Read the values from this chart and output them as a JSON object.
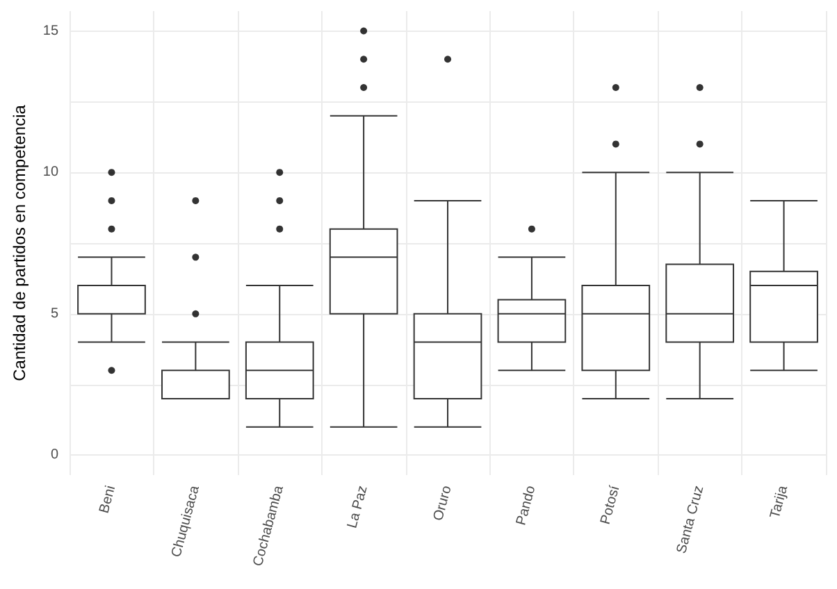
{
  "chart_data": {
    "type": "box",
    "ylabel": "Cantidad de partidos en competencia",
    "categories": [
      "Beni",
      "Chuquisaca",
      "Cochabamba",
      "La Paz",
      "Oruro",
      "Pando",
      "Potosí",
      "Santa Cruz",
      "Tarija"
    ],
    "color": "#333333",
    "boxes": [
      {
        "low": 4,
        "q1": 5,
        "median": 5,
        "q3": 6,
        "high": 7,
        "outliers": [
          3,
          8,
          9,
          10
        ]
      },
      {
        "low": 2,
        "q1": 2,
        "median": 3,
        "q3": 3,
        "high": 4,
        "outliers": [
          5,
          7,
          9
        ]
      },
      {
        "low": 1,
        "q1": 2,
        "median": 3,
        "q3": 4,
        "high": 6,
        "outliers": [
          8,
          9,
          10
        ]
      },
      {
        "low": 1,
        "q1": 5,
        "median": 7,
        "q3": 8,
        "high": 12,
        "outliers": [
          13,
          14,
          15
        ]
      },
      {
        "low": 1,
        "q1": 2,
        "median": 4,
        "q3": 5,
        "high": 9,
        "outliers": [
          14
        ]
      },
      {
        "low": 3,
        "q1": 4,
        "median": 5,
        "q3": 5.5,
        "high": 7,
        "outliers": [
          8
        ]
      },
      {
        "low": 2,
        "q1": 3,
        "median": 5,
        "q3": 6,
        "high": 10,
        "outliers": [
          11,
          13
        ]
      },
      {
        "low": 2,
        "q1": 4,
        "median": 5,
        "q3": 6.75,
        "high": 10,
        "outliers": [
          11,
          13
        ]
      },
      {
        "low": 3,
        "q1": 4,
        "median": 6,
        "q3": 6.5,
        "high": 9
      }
    ],
    "ylim": [
      -0.7,
      15.7
    ],
    "yticks": [
      0,
      {
        "value": 2.5,
        "label": null
      },
      5,
      {
        "value": 7.5,
        "label": null
      },
      10,
      {
        "value": 12.5,
        "label": null
      },
      15
    ],
    "grid": true
  }
}
